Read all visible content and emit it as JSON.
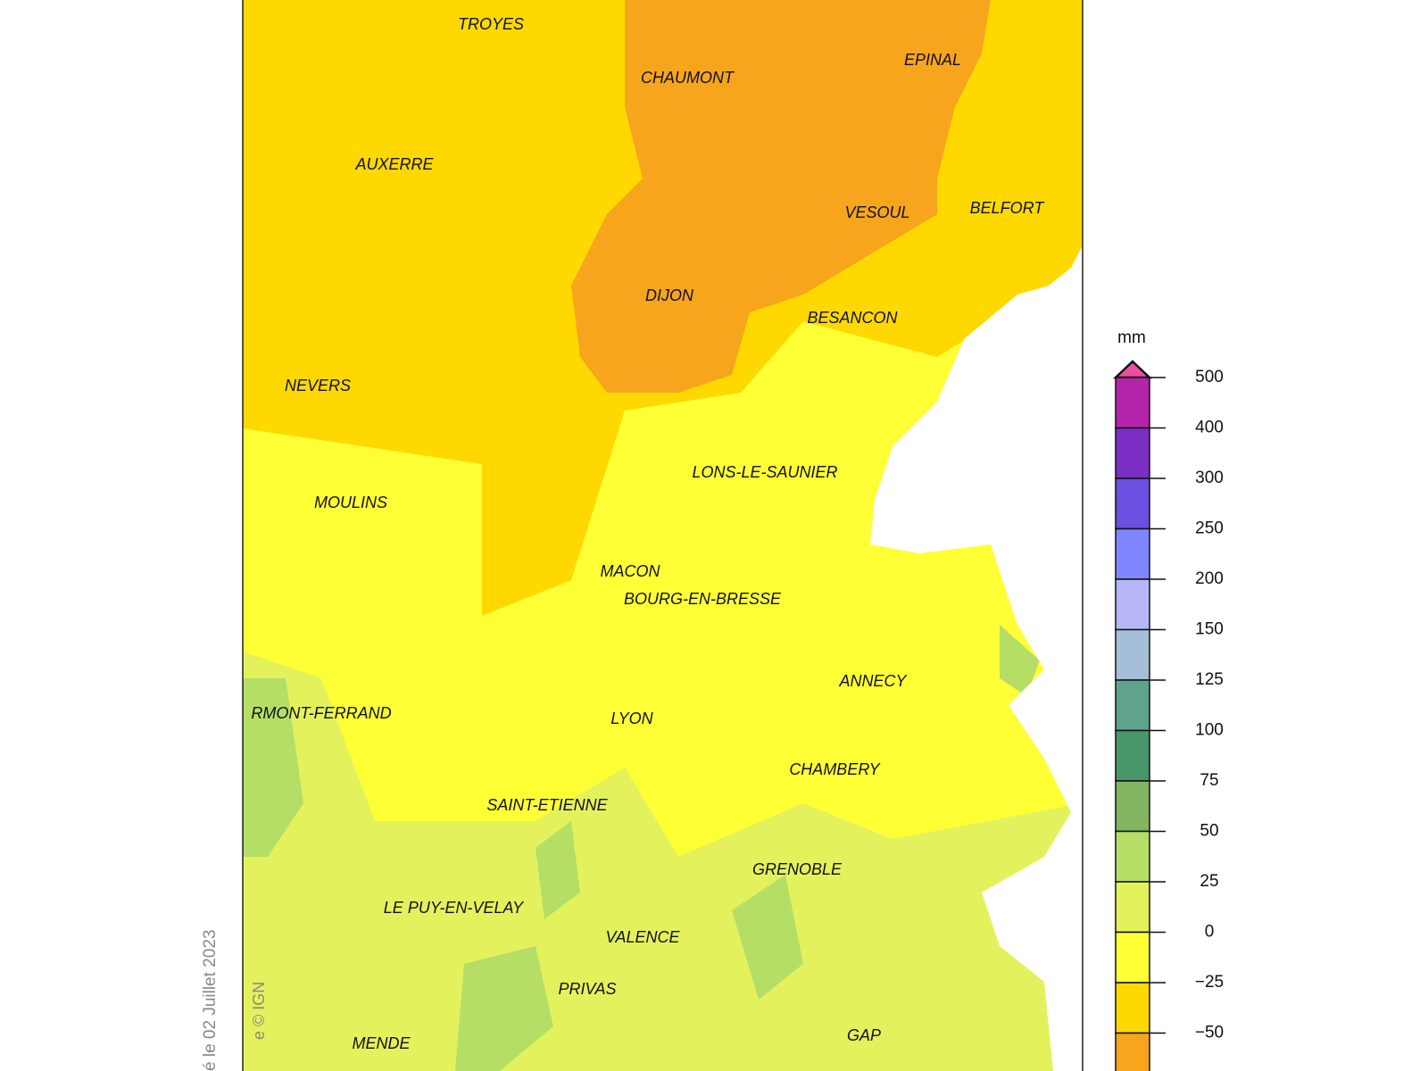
{
  "map": {
    "cities": [
      "TROYES",
      "CHAUMONT",
      "EPINAL",
      "AUXERRE",
      "VESOUL",
      "BELFORT",
      "DIJON",
      "BESANCON",
      "NEVERS",
      "LONS-LE-SAUNIER",
      "MOULINS",
      "MACON",
      "BOURG-EN-BRESSE",
      "ANNECY",
      "RMONT-FERRAND",
      "LYON",
      "CHAMBERY",
      "SAINT-ETIENNE",
      "GRENOBLE",
      "LE PUY-EN-VELAY",
      "VALENCE",
      "PRIVAS",
      "MENDE",
      "GAP"
    ],
    "credit": "e © IGN",
    "date_note": "é le 02 Juillet 2023"
  },
  "legend": {
    "unit": "mm",
    "labels": [
      "500",
      "400",
      "300",
      "250",
      "200",
      "150",
      "125",
      "100",
      "75",
      "50",
      "25",
      "0",
      "−25",
      "−50"
    ],
    "colors": [
      "#b424a8",
      "#7a2ec4",
      "#6a4fe0",
      "#7f86ff",
      "#b7b7f7",
      "#a6bfd8",
      "#5fa38e",
      "#49966a",
      "#82b462",
      "#b5de66",
      "#e3f25c",
      "#ffff35",
      "#ffd800",
      "#f7a51c"
    ],
    "arrow_color": "#f04ca0"
  }
}
